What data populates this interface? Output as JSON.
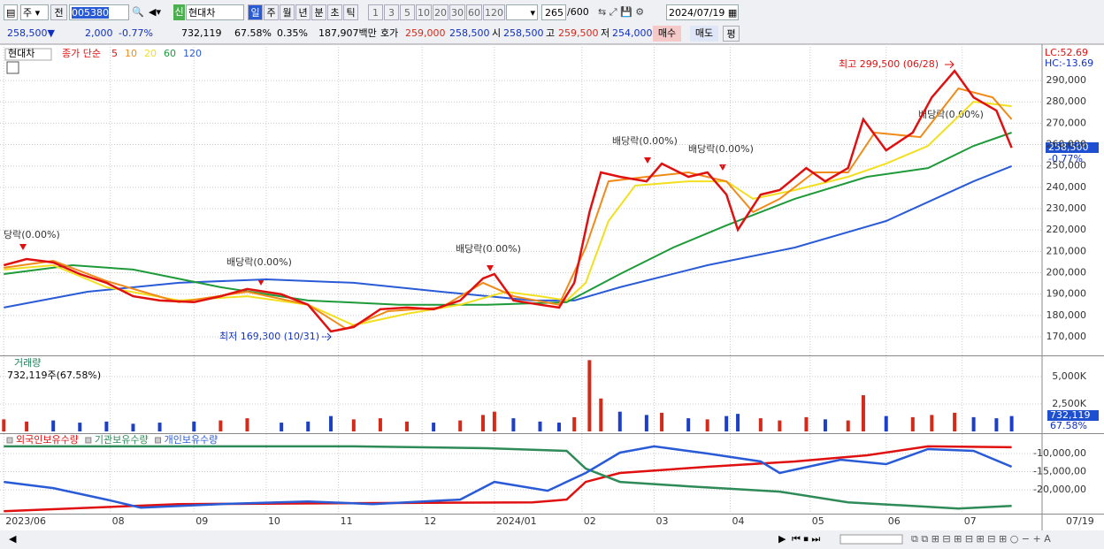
{
  "toolbar": {
    "period_select": "주",
    "prev_button": "전",
    "stock_code": "005380",
    "stock_name": "현대차",
    "new_badge": "신",
    "intervals": [
      "일",
      "주",
      "월",
      "년",
      "분",
      "초",
      "틱"
    ],
    "counts": [
      "1",
      "3",
      "5",
      "10",
      "20",
      "30",
      "60",
      "120"
    ],
    "view_count": "265",
    "view_max": "/600",
    "date": "2024/07/19"
  },
  "quote_bar": {
    "price": "258,500▼",
    "change": "2,000",
    "change_rate": "-0.77%",
    "volume": "732,119",
    "volume_rate": "67.58%",
    "turnover": "0.35%",
    "amount": "187,907백만",
    "bid_label": "호가",
    "ask": "259,000",
    "bid": "258,500",
    "open_label": "시",
    "open": "258,500",
    "high_label": "고",
    "high": "259,500",
    "low_label": "저",
    "low": "254,000",
    "buy": "매수",
    "sell": "매도",
    "avg": "평"
  },
  "x_axis": {
    "xlim": [
      -1,
      273
    ],
    "xticks": [
      {
        "value": 0,
        "label": "2023/06"
      },
      {
        "value": 28,
        "label": "08"
      },
      {
        "value": 50,
        "label": "09"
      },
      {
        "value": 69,
        "label": "10"
      },
      {
        "value": 88,
        "label": "11"
      },
      {
        "value": 110,
        "label": "12"
      },
      {
        "value": 129,
        "label": "2024/01"
      },
      {
        "value": 152,
        "label": "02"
      },
      {
        "value": 171,
        "label": "03"
      },
      {
        "value": 191,
        "label": "04"
      },
      {
        "value": 212,
        "label": "05"
      },
      {
        "value": 232,
        "label": "06"
      },
      {
        "value": 252,
        "label": "07"
      }
    ],
    "end_label": "07/19"
  },
  "price_panel": {
    "stock": "현대차",
    "legend_title": "종가 단순",
    "lc": "LC:52.69",
    "hc": "HC:-13.69",
    "last_price": "258,500",
    "last_change": "-0.77%",
    "annotations": {
      "high": "최고 299,500 (06/28)",
      "low": "최저 169,300 (10/31)",
      "div1": "당락(0.00%)",
      "div2": "배당락(0.00%)",
      "div3": "배당락(0.00%)",
      "div4": "배당락(0.00%)",
      "div5": "배당락(0.00%)",
      "div6": "배당락(0.00%)"
    },
    "ylim": [
      161300,
      307000
    ],
    "yticks": [
      {
        "value": 170000,
        "label": "170,000"
      },
      {
        "value": 180000,
        "label": "180,000"
      },
      {
        "value": 190000,
        "label": "190,000"
      },
      {
        "value": 200000,
        "label": "200,000"
      },
      {
        "value": 210000,
        "label": "210,000"
      },
      {
        "value": 220000,
        "label": "220,000"
      },
      {
        "value": 230000,
        "label": "230,000"
      },
      {
        "value": 240000,
        "label": "240,000"
      },
      {
        "value": 250000,
        "label": "250,000"
      },
      {
        "value": 260000,
        "label": "260,000"
      },
      {
        "value": 270000,
        "label": "270,000"
      },
      {
        "value": 280000,
        "label": "280,000"
      },
      {
        "value": 290000,
        "label": "290,000"
      }
    ],
    "series": [
      {
        "name": "5",
        "color": "#e01010",
        "x": [
          0,
          6,
          13,
          20,
          27,
          34,
          41,
          50,
          57,
          64,
          73,
          80,
          86,
          92,
          99,
          106,
          113,
          120,
          126,
          129,
          134,
          141,
          146,
          150,
          154,
          157,
          162,
          169,
          173,
          180,
          185,
          190,
          193,
          199,
          204,
          211,
          216,
          222,
          226,
          232,
          239,
          244,
          250,
          255,
          261,
          265
        ],
        "values": [
          203500,
          206400,
          204800,
          199400,
          195300,
          189000,
          187000,
          186200,
          189000,
          192400,
          189900,
          185000,
          172500,
          174600,
          182900,
          183700,
          182900,
          187000,
          197300,
          199400,
          187000,
          185000,
          183700,
          195300,
          228400,
          247000,
          244900,
          242800,
          251100,
          244900,
          247000,
          236600,
          220100,
          236600,
          238700,
          249000,
          242800,
          249000,
          271800,
          257300,
          265600,
          282100,
          294500,
          282100,
          275900,
          258500
        ]
      },
      {
        "name": "10",
        "color": "#f08a18",
        "x": [
          0,
          13,
          27,
          46,
          64,
          80,
          90,
          101,
          115,
          126,
          134,
          146,
          153,
          159,
          169,
          180,
          190,
          197,
          204,
          213,
          222,
          229,
          241,
          251,
          260,
          265
        ],
        "values": [
          202300,
          205600,
          196100,
          186200,
          191100,
          185000,
          173800,
          182000,
          183700,
          195300,
          189000,
          185000,
          211800,
          242800,
          244900,
          247000,
          242800,
          228400,
          234600,
          247000,
          247000,
          265600,
          263500,
          286300,
          282100,
          271800
        ]
      },
      {
        "name": "20",
        "color": "#f2e020",
        "x": [
          0,
          13,
          27,
          46,
          64,
          80,
          92,
          106,
          120,
          132,
          141,
          148,
          153,
          159,
          166,
          180,
          190,
          197,
          208,
          222,
          232,
          243,
          255,
          265
        ],
        "values": [
          201500,
          203500,
          193200,
          187000,
          189000,
          185000,
          175400,
          180800,
          185000,
          191100,
          189000,
          187000,
          195300,
          224200,
          240800,
          242800,
          242800,
          234600,
          238700,
          244900,
          251100,
          259400,
          280100,
          278000
        ]
      },
      {
        "name": "60",
        "color": "#1e9a3a",
        "x": [
          0,
          18,
          34,
          57,
          80,
          104,
          127,
          148,
          162,
          176,
          190,
          208,
          227,
          243,
          255,
          265
        ],
        "values": [
          199400,
          203500,
          201500,
          193200,
          187000,
          185000,
          185000,
          186200,
          199400,
          211800,
          222200,
          234600,
          244900,
          249000,
          259400,
          265600
        ]
      },
      {
        "name": "120",
        "color": "#2a5bd7",
        "x": [
          0,
          22,
          46,
          69,
          92,
          115,
          139,
          150,
          162,
          185,
          208,
          232,
          255,
          265
        ],
        "values": [
          183700,
          191100,
          195300,
          196900,
          195300,
          191100,
          187000,
          187000,
          193200,
          203500,
          211800,
          224200,
          242800,
          249900
        ]
      }
    ]
  },
  "volume_panel": {
    "title": "거래량",
    "info": "732,119주(67.58%)",
    "last_volume": "732,119",
    "last_rate": "67.58%",
    "ylim": [
      0,
      6850
    ],
    "yticks": [
      {
        "value": 2500,
        "label": "2,500K"
      },
      {
        "value": 5000,
        "label": "5,000K"
      }
    ],
    "up_color": "#d42a1a",
    "down_color": "#1c3fc8",
    "values": [
      1100,
      900,
      1000,
      800,
      900,
      700,
      800,
      900,
      1000,
      1200,
      800,
      900,
      1400,
      1100,
      1200,
      900,
      800,
      1000,
      1500,
      1800,
      1200,
      900,
      800,
      1300,
      6500,
      3000,
      1800,
      1500,
      1700,
      1200,
      1100,
      1400,
      1600,
      1200,
      1000,
      1300,
      1100,
      1000,
      3300,
      1400,
      1300,
      1500,
      1700,
      1300,
      1200,
      1400
    ]
  },
  "holdings_panel": {
    "ylim": [
      -26300000,
      -4900000
    ],
    "yticks": [
      {
        "value": -10000000,
        "label": "-10,000,00"
      },
      {
        "value": -15000000,
        "label": "-15,000,00"
      },
      {
        "value": -20000000,
        "label": "-20,000,00"
      }
    ],
    "series": [
      {
        "name": "외국인보유수량",
        "color": "#e01010",
        "x": [
          0,
          46,
          139,
          148,
          153,
          162,
          185,
          208,
          227,
          243,
          265
        ],
        "values": [
          -25860000,
          -23908000,
          -23420000,
          -22688000,
          -17808000,
          -15368000,
          -13660000,
          -12196000,
          -10488000,
          -8048000,
          -8292000
        ]
      },
      {
        "name": "기관보유수량",
        "color": "#2e8b57",
        "x": [
          0,
          92,
          127,
          148,
          153,
          162,
          180,
          204,
          222,
          251,
          265
        ],
        "values": [
          -8048000,
          -8048000,
          -8536000,
          -9268000,
          -14148000,
          -17808000,
          -19028000,
          -20492000,
          -23420000,
          -25128000,
          -24396000
        ]
      },
      {
        "name": "개인보유수량",
        "color": "#2a5bd7",
        "x": [
          0,
          13,
          27,
          36,
          57,
          80,
          97,
          120,
          129,
          143,
          153,
          162,
          171,
          185,
          199,
          204,
          220,
          232,
          243,
          255,
          265
        ],
        "values": [
          -17808000,
          -19516000,
          -22688000,
          -24884000,
          -23908000,
          -23176000,
          -23908000,
          -22688000,
          -17808000,
          -20248000,
          -15368000,
          -9756000,
          -8048000,
          -10000000,
          -12196000,
          -15368000,
          -11708000,
          -12928000,
          -8780000,
          -9268000,
          -13660000
        ]
      }
    ]
  }
}
